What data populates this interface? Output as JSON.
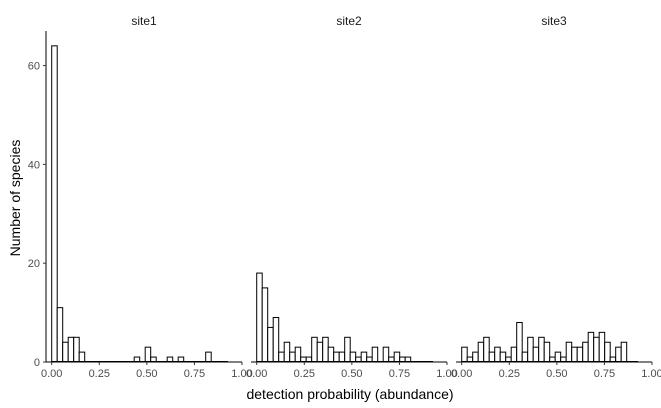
{
  "chart_data": {
    "type": "bar",
    "xlabel": "detection probability (abundance)",
    "ylabel": "Number of species",
    "xlim": [
      -0.03,
      1.0
    ],
    "ylim": [
      0,
      67
    ],
    "x_ticks": [
      "0.00",
      "0.25",
      "0.50",
      "0.75",
      "1.00"
    ],
    "x_tick_values": [
      0,
      0.25,
      0.5,
      0.75,
      1.0
    ],
    "y_ticks": [
      "0",
      "20",
      "40",
      "60"
    ],
    "y_tick_values": [
      0,
      20,
      40,
      60
    ],
    "bin_width": 0.0289,
    "bin_start": 0.0,
    "grid": false,
    "facets": [
      {
        "name": "site1",
        "counts": [
          64,
          11,
          4,
          5,
          5,
          2,
          0,
          0,
          0,
          0,
          0,
          0,
          0,
          0,
          0,
          1,
          0,
          3,
          1,
          0,
          0,
          1,
          0,
          1,
          0,
          0,
          0,
          0,
          2,
          0,
          0,
          0,
          0,
          0,
          0
        ]
      },
      {
        "name": "site2",
        "counts": [
          18,
          15,
          7,
          9,
          2,
          4,
          2,
          3,
          1,
          1,
          5,
          4,
          5,
          3,
          2,
          2,
          5,
          2,
          1,
          2,
          1,
          3,
          0,
          3,
          1,
          2,
          1,
          1,
          0,
          0,
          0,
          0,
          0,
          0,
          0
        ]
      },
      {
        "name": "site3",
        "counts": [
          3,
          1,
          2,
          4,
          5,
          2,
          3,
          2,
          1,
          3,
          8,
          2,
          5,
          3,
          5,
          4,
          1,
          2,
          1,
          4,
          3,
          3,
          4,
          6,
          5,
          6,
          4,
          1,
          3,
          4,
          0,
          0,
          0,
          0,
          0
        ]
      }
    ]
  }
}
